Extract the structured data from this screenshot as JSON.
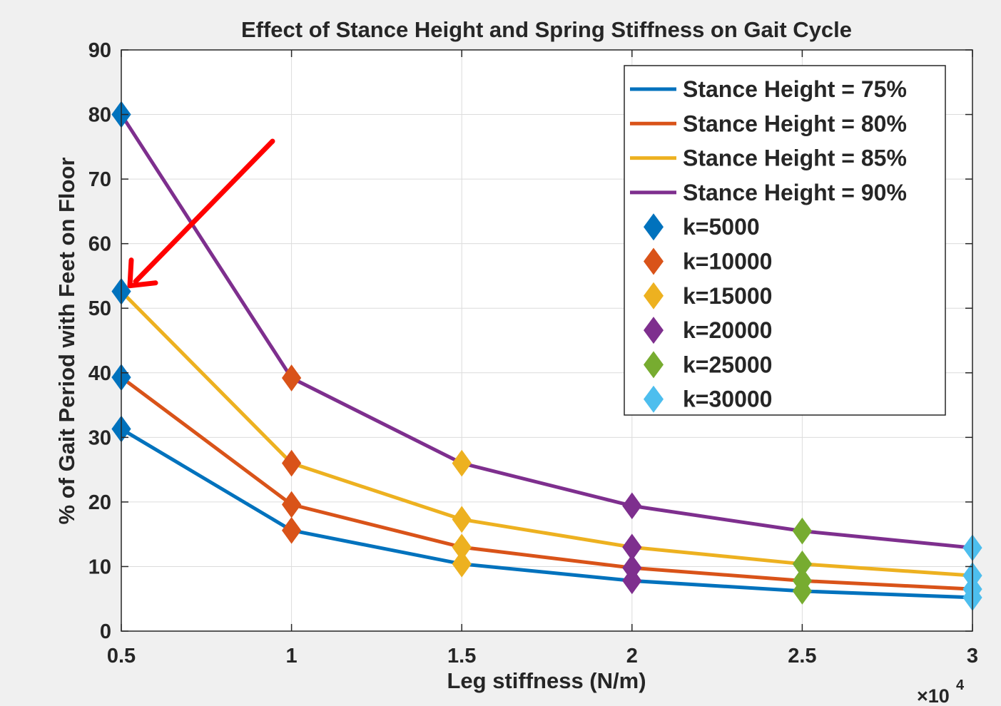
{
  "chart_data": {
    "type": "line",
    "title": "Effect of Stance Height and Spring Stiffness on Gait Cycle",
    "xlabel": "Leg stiffness (N/m)",
    "ylabel": "% of Gait Period with Feet on Floor",
    "x_exponent_base": "×10",
    "x_exponent_power": "4",
    "x": [
      5000,
      10000,
      15000,
      20000,
      25000,
      30000
    ],
    "xlim": [
      5000,
      30000
    ],
    "ylim": [
      0,
      90
    ],
    "xticks": [
      5000,
      10000,
      15000,
      20000,
      25000,
      30000
    ],
    "xtick_labels": [
      "0.5",
      "1",
      "1.5",
      "2",
      "2.5",
      "3"
    ],
    "yticks": [
      0,
      10,
      20,
      30,
      40,
      50,
      60,
      70,
      80,
      90
    ],
    "ytick_labels": [
      "0",
      "10",
      "20",
      "30",
      "40",
      "50",
      "60",
      "70",
      "80",
      "90"
    ],
    "grid": true,
    "legend_position": "top-right",
    "series": [
      {
        "name": "Stance Height = 75%",
        "color": "#0072BD",
        "values": [
          31.3,
          15.6,
          10.4,
          7.8,
          6.2,
          5.2
        ]
      },
      {
        "name": "Stance Height = 80%",
        "color": "#D95319",
        "values": [
          39.3,
          19.6,
          13.0,
          9.8,
          7.8,
          6.5
        ]
      },
      {
        "name": "Stance Height = 85%",
        "color": "#EDB120",
        "values": [
          52.6,
          26.0,
          17.3,
          13.0,
          10.4,
          8.6
        ]
      },
      {
        "name": "Stance Height = 90%",
        "color": "#7E2F8E",
        "values": [
          80.0,
          39.2,
          26.0,
          19.4,
          15.5,
          12.9
        ]
      }
    ],
    "marker_groups": [
      {
        "name": "k=5000",
        "color": "#0072BD",
        "x": 5000
      },
      {
        "name": "k=10000",
        "color": "#D95319",
        "x": 10000
      },
      {
        "name": "k=15000",
        "color": "#EDB120",
        "x": 15000
      },
      {
        "name": "k=20000",
        "color": "#7E2F8E",
        "x": 20000
      },
      {
        "name": "k=25000",
        "color": "#77AC30",
        "x": 25000
      },
      {
        "name": "k=30000",
        "color": "#4DBEEE",
        "x": 30000
      }
    ],
    "annotation": {
      "type": "arrow",
      "color": "#FF0000",
      "points_to": {
        "x": 5000,
        "y": 52.6
      }
    }
  }
}
